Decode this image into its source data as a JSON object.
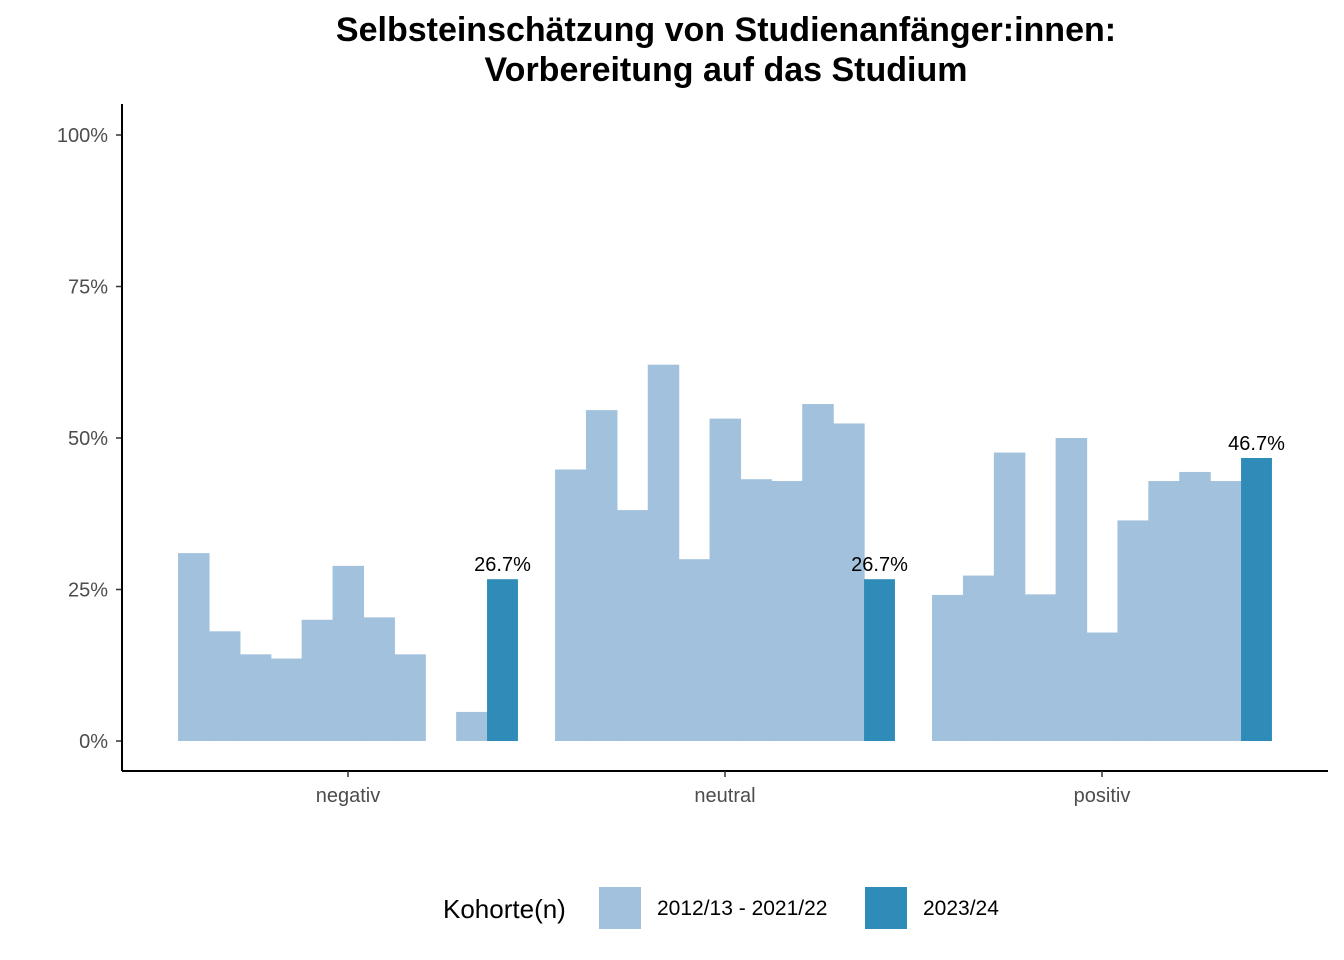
{
  "chart_data": {
    "type": "bar",
    "title_line1": "Selbsteinschätzung von Studienanfänger:innen:",
    "title_line2": "Vorbereitung auf das Studium",
    "categories": [
      "negativ",
      "neutral",
      "positiv"
    ],
    "yticks": [
      "0%",
      "25%",
      "50%",
      "75%",
      "100%"
    ],
    "ylim": [
      0,
      100
    ],
    "series": [
      {
        "name": "2012/13 - 2021/22",
        "color": "#a1c1dd",
        "values": [
          [
            31.0,
            18.1,
            14.3,
            13.6,
            20.0,
            28.9,
            20.4,
            14.3,
            null,
            4.8
          ],
          [
            44.8,
            54.6,
            38.1,
            62.1,
            30.0,
            53.2,
            43.2,
            42.9,
            55.6,
            52.4
          ],
          [
            24.1,
            27.3,
            47.6,
            24.2,
            50.0,
            17.9,
            36.4,
            42.9,
            44.4,
            42.9
          ]
        ]
      },
      {
        "name": "2023/24",
        "color": "#2f8bb8",
        "values": [
          26.7,
          26.7,
          46.7
        ],
        "labels": [
          "26.7%",
          "26.7%",
          "46.7%"
        ]
      }
    ],
    "legend_title": "Kohorte(n)",
    "legend_position": "bottom"
  }
}
